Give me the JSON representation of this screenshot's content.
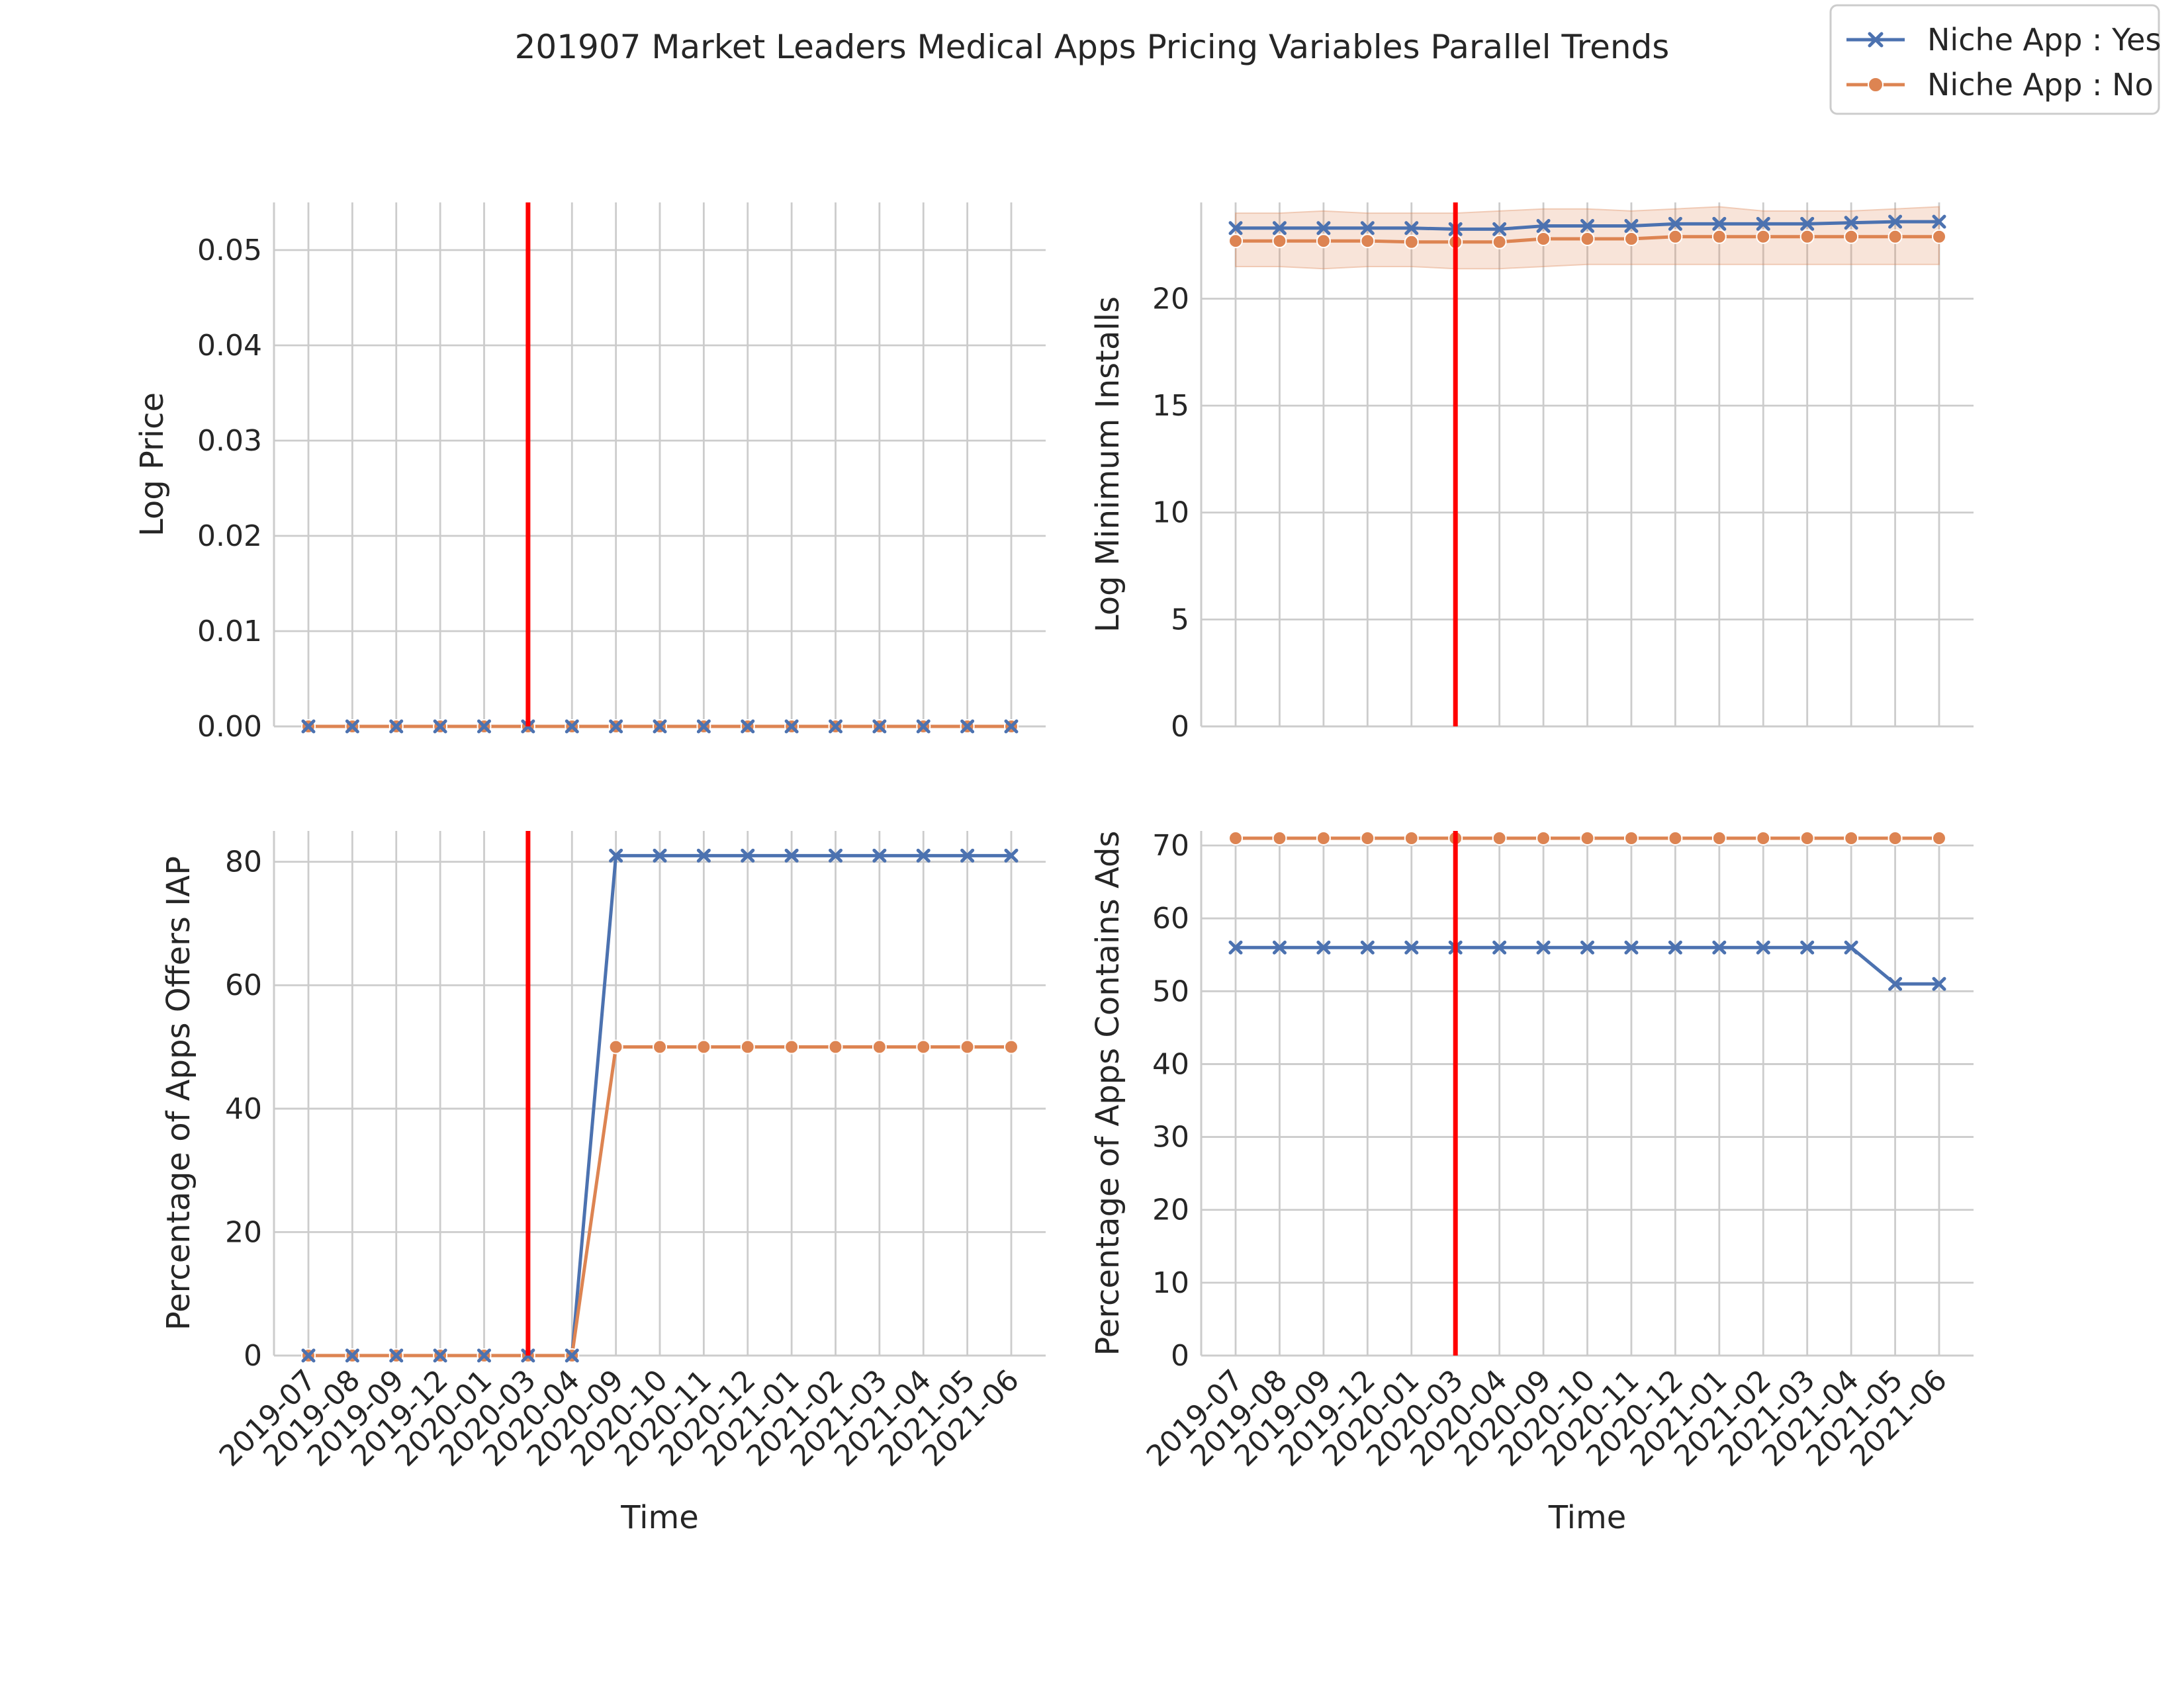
{
  "figure": {
    "title": "201907 Market Leaders Medical Apps Pricing Variables Parallel Trends"
  },
  "colors": {
    "yes": "#4c72b0",
    "no": "#dd8452",
    "event_line": "#ff0000"
  },
  "legend": {
    "placement": "top-right",
    "entries": [
      {
        "label": "Niche App : Yes",
        "marker": "x",
        "color": "#4c72b0"
      },
      {
        "label": "Niche App : No",
        "marker": "o",
        "color": "#dd8452"
      }
    ]
  },
  "chart_data": [
    {
      "type": "line",
      "panel": "top-left",
      "ylabel": "Log Price",
      "xlabel": "",
      "ylim": [
        0,
        0.055
      ],
      "yticks": [
        "0.00",
        "0.01",
        "0.02",
        "0.03",
        "0.04",
        "0.05"
      ],
      "ytick_values": [
        0,
        0.01,
        0.02,
        0.03,
        0.04,
        0.05
      ],
      "event_line_x": "2020-03",
      "x": [
        "2019-07",
        "2019-08",
        "2019-09",
        "2019-12",
        "2020-01",
        "2020-03",
        "2020-04",
        "2020-09",
        "2020-10",
        "2020-11",
        "2020-12",
        "2021-01",
        "2021-02",
        "2021-03",
        "2021-04",
        "2021-05",
        "2021-06"
      ],
      "series": [
        {
          "name": "Niche App : Yes",
          "values": [
            0,
            0,
            0,
            0,
            0,
            0,
            0,
            0,
            0,
            0,
            0,
            0,
            0,
            0,
            0,
            0,
            0
          ]
        },
        {
          "name": "Niche App : No",
          "values": [
            0,
            0,
            0,
            0,
            0,
            0,
            0,
            0,
            0,
            0,
            0,
            0,
            0,
            0,
            0,
            0,
            0
          ]
        }
      ],
      "show_x_ticklabels": false
    },
    {
      "type": "line",
      "panel": "top-right",
      "ylabel": "Log Minimum Installs",
      "xlabel": "",
      "ylim": [
        0,
        24.5
      ],
      "yticks": [
        "0",
        "5",
        "10",
        "15",
        "20"
      ],
      "ytick_values": [
        0,
        5,
        10,
        15,
        20
      ],
      "event_line_x": "2020-03",
      "x": [
        "2019-07",
        "2019-08",
        "2019-09",
        "2019-12",
        "2020-01",
        "2020-03",
        "2020-04",
        "2020-09",
        "2020-10",
        "2020-11",
        "2020-12",
        "2021-01",
        "2021-02",
        "2021-03",
        "2021-04",
        "2021-05",
        "2021-06"
      ],
      "series": [
        {
          "name": "Niche App : Yes",
          "values": [
            23.3,
            23.3,
            23.3,
            23.3,
            23.3,
            23.25,
            23.25,
            23.4,
            23.4,
            23.4,
            23.5,
            23.5,
            23.5,
            23.5,
            23.55,
            23.6,
            23.6
          ]
        },
        {
          "name": "Niche App : No",
          "values": [
            22.7,
            22.7,
            22.7,
            22.7,
            22.65,
            22.65,
            22.65,
            22.8,
            22.8,
            22.8,
            22.9,
            22.9,
            22.9,
            22.9,
            22.9,
            22.9,
            22.9
          ],
          "ci_low": [
            21.5,
            21.5,
            21.4,
            21.5,
            21.5,
            21.4,
            21.4,
            21.5,
            21.6,
            21.6,
            21.6,
            21.6,
            21.6,
            21.6,
            21.6,
            21.6,
            21.6
          ],
          "ci_high": [
            24.0,
            24.0,
            24.1,
            24.0,
            24.0,
            24.0,
            24.1,
            24.2,
            24.2,
            24.1,
            24.2,
            24.3,
            24.1,
            24.1,
            24.1,
            24.2,
            24.3
          ]
        }
      ],
      "show_x_ticklabels": false
    },
    {
      "type": "line",
      "panel": "bottom-left",
      "ylabel": "Percentage of Apps Offers IAP",
      "xlabel": "Time",
      "ylim": [
        0,
        85
      ],
      "yticks": [
        "0",
        "20",
        "40",
        "60",
        "80"
      ],
      "ytick_values": [
        0,
        20,
        40,
        60,
        80
      ],
      "event_line_x": "2020-03",
      "x": [
        "2019-07",
        "2019-08",
        "2019-09",
        "2019-12",
        "2020-01",
        "2020-03",
        "2020-04",
        "2020-09",
        "2020-10",
        "2020-11",
        "2020-12",
        "2021-01",
        "2021-02",
        "2021-03",
        "2021-04",
        "2021-05",
        "2021-06"
      ],
      "series": [
        {
          "name": "Niche App : Yes",
          "values": [
            0,
            0,
            0,
            0,
            0,
            0,
            0,
            81,
            81,
            81,
            81,
            81,
            81,
            81,
            81,
            81,
            81
          ]
        },
        {
          "name": "Niche App : No",
          "values": [
            0,
            0,
            0,
            0,
            0,
            0,
            0,
            50,
            50,
            50,
            50,
            50,
            50,
            50,
            50,
            50,
            50
          ]
        }
      ],
      "show_x_ticklabels": true
    },
    {
      "type": "line",
      "panel": "bottom-right",
      "ylabel": "Percentage of Apps Contains Ads",
      "xlabel": "Time",
      "ylim": [
        0,
        72
      ],
      "yticks": [
        "0",
        "10",
        "20",
        "30",
        "40",
        "50",
        "60",
        "70"
      ],
      "ytick_values": [
        0,
        10,
        20,
        30,
        40,
        50,
        60,
        70
      ],
      "event_line_x": "2020-03",
      "x": [
        "2019-07",
        "2019-08",
        "2019-09",
        "2019-12",
        "2020-01",
        "2020-03",
        "2020-04",
        "2020-09",
        "2020-10",
        "2020-11",
        "2020-12",
        "2021-01",
        "2021-02",
        "2021-03",
        "2021-04",
        "2021-05",
        "2021-06"
      ],
      "series": [
        {
          "name": "Niche App : Yes",
          "values": [
            56,
            56,
            56,
            56,
            56,
            56,
            56,
            56,
            56,
            56,
            56,
            56,
            56,
            56,
            56,
            51,
            51
          ]
        },
        {
          "name": "Niche App : No",
          "values": [
            71,
            71,
            71,
            71,
            71,
            71,
            71,
            71,
            71,
            71,
            71,
            71,
            71,
            71,
            71,
            71,
            71
          ]
        }
      ],
      "show_x_ticklabels": true
    }
  ]
}
